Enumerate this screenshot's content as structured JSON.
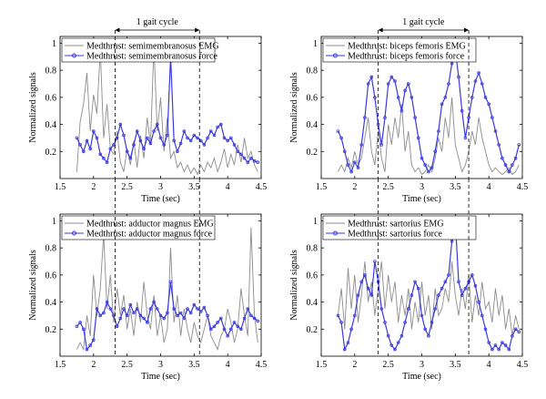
{
  "colors": {
    "emg": "#8c8c8c",
    "force": "#3a3adf",
    "axis": "#000000"
  },
  "chart_data": [
    {
      "type": "line",
      "panel": "top-left",
      "xlabel": "Time (sec)",
      "ylabel": "Normalized signals",
      "xlim": [
        1.5,
        4.5
      ],
      "ylim": [
        0,
        1.05
      ],
      "xticks": [
        "1.5",
        "2",
        "2.5",
        "3",
        "3.5",
        "4",
        "4.5"
      ],
      "yticks": [
        "0.2",
        "0.4",
        "0.6",
        "0.8",
        "1"
      ],
      "legend": "top-left",
      "annotation": {
        "text": "1 gait cycle",
        "x_start": 2.32,
        "x_end": 3.58
      },
      "series": [
        {
          "name": "Medthrust: semimembranosus EMG",
          "kind": "emg",
          "x": [
            1.75,
            1.8,
            1.85,
            1.9,
            1.95,
            2.0,
            2.05,
            2.1,
            2.15,
            2.2,
            2.25,
            2.3,
            2.35,
            2.4,
            2.45,
            2.5,
            2.55,
            2.6,
            2.65,
            2.7,
            2.75,
            2.8,
            2.85,
            2.9,
            2.95,
            3.0,
            3.05,
            3.1,
            3.15,
            3.2,
            3.25,
            3.3,
            3.35,
            3.4,
            3.45,
            3.5,
            3.55,
            3.6,
            3.65,
            3.7,
            3.75,
            3.8,
            3.85,
            3.9,
            3.95,
            4.0,
            4.05,
            4.1,
            4.15,
            4.2,
            4.25,
            4.3,
            4.35,
            4.4,
            4.45
          ],
          "y": [
            0.05,
            0.42,
            0.55,
            0.78,
            0.35,
            0.62,
            0.48,
            0.95,
            0.3,
            0.55,
            0.22,
            0.18,
            0.35,
            0.12,
            0.05,
            0.22,
            0.1,
            0.28,
            0.08,
            0.32,
            0.15,
            0.45,
            0.25,
            0.98,
            0.35,
            0.6,
            0.2,
            0.45,
            0.15,
            0.2,
            0.08,
            0.12,
            0.05,
            0.1,
            0.04,
            0.08,
            0.03,
            0.1,
            0.05,
            0.12,
            0.08,
            0.15,
            0.05,
            0.12,
            0.22,
            0.08,
            0.18,
            0.1,
            0.25,
            0.12,
            0.3,
            0.15,
            0.2,
            0.1,
            0.05
          ]
        },
        {
          "name": "Medthrust: semimembranosus force",
          "kind": "force",
          "x": [
            1.75,
            1.8,
            1.85,
            1.9,
            1.95,
            2.0,
            2.05,
            2.1,
            2.15,
            2.2,
            2.25,
            2.3,
            2.35,
            2.4,
            2.45,
            2.5,
            2.55,
            2.6,
            2.65,
            2.7,
            2.75,
            2.8,
            2.85,
            2.9,
            2.95,
            3.0,
            3.05,
            3.1,
            3.15,
            3.2,
            3.25,
            3.3,
            3.35,
            3.4,
            3.45,
            3.5,
            3.55,
            3.6,
            3.65,
            3.7,
            3.75,
            3.8,
            3.85,
            3.9,
            3.95,
            4.0,
            4.05,
            4.1,
            4.15,
            4.2,
            4.25,
            4.3,
            4.35,
            4.4,
            4.45
          ],
          "y": [
            0.3,
            0.25,
            0.2,
            0.28,
            0.22,
            0.35,
            0.3,
            0.18,
            0.15,
            0.12,
            0.22,
            0.25,
            0.3,
            0.4,
            0.32,
            0.2,
            0.15,
            0.25,
            0.35,
            0.28,
            0.22,
            0.3,
            0.26,
            0.35,
            0.4,
            0.3,
            0.25,
            0.32,
            0.9,
            0.28,
            0.2,
            0.26,
            0.35,
            0.3,
            0.28,
            0.32,
            0.3,
            0.28,
            0.25,
            0.3,
            0.35,
            0.32,
            0.38,
            0.4,
            0.3,
            0.28,
            0.3,
            0.25,
            0.2,
            0.18,
            0.15,
            0.12,
            0.15,
            0.13,
            0.12
          ]
        }
      ]
    },
    {
      "type": "line",
      "panel": "top-right",
      "xlabel": "Time (sec)",
      "ylabel": "Normalized signals",
      "xlim": [
        1.5,
        4.5
      ],
      "ylim": [
        0,
        1.05
      ],
      "xticks": [
        "1.5",
        "2",
        "2.5",
        "3",
        "3.5",
        "4",
        "4.5"
      ],
      "yticks": [
        "0.2",
        "0.4",
        "0.6",
        "0.8",
        "1"
      ],
      "legend": "top-left",
      "annotation": {
        "text": "1 gait cycle",
        "x_start": 2.35,
        "x_end": 3.7
      },
      "series": [
        {
          "name": "Medthrust: biceps femoris EMG",
          "kind": "emg",
          "x": [
            1.75,
            1.8,
            1.85,
            1.9,
            1.95,
            2.0,
            2.05,
            2.1,
            2.15,
            2.2,
            2.25,
            2.3,
            2.35,
            2.4,
            2.45,
            2.5,
            2.55,
            2.6,
            2.65,
            2.7,
            2.75,
            2.8,
            2.85,
            2.9,
            2.95,
            3.0,
            3.05,
            3.1,
            3.15,
            3.2,
            3.25,
            3.3,
            3.35,
            3.4,
            3.45,
            3.5,
            3.55,
            3.6,
            3.65,
            3.7,
            3.75,
            3.8,
            3.85,
            3.9,
            3.95,
            4.0,
            4.05,
            4.1,
            4.15,
            4.2,
            4.25,
            4.3,
            4.35,
            4.4,
            4.45
          ],
          "y": [
            0.05,
            0.1,
            0.05,
            0.15,
            0.08,
            0.2,
            0.1,
            0.15,
            0.3,
            0.45,
            0.2,
            0.1,
            0.35,
            0.15,
            0.05,
            0.4,
            0.25,
            0.45,
            0.3,
            0.55,
            0.2,
            0.35,
            0.1,
            0.05,
            0.08,
            0.03,
            0.05,
            0.1,
            0.05,
            0.15,
            0.3,
            0.2,
            0.45,
            0.3,
            0.6,
            0.25,
            0.15,
            0.05,
            0.1,
            0.2,
            0.35,
            0.25,
            0.45,
            0.3,
            0.2,
            0.1,
            0.05,
            0.08,
            0.05,
            0.03,
            0.05,
            0.08,
            0.03,
            0.05,
            0.1
          ]
        },
        {
          "name": "Medthrust: biceps femoris force",
          "kind": "force",
          "x": [
            1.75,
            1.8,
            1.85,
            1.9,
            1.95,
            2.0,
            2.05,
            2.1,
            2.15,
            2.2,
            2.25,
            2.3,
            2.35,
            2.4,
            2.45,
            2.5,
            2.55,
            2.6,
            2.65,
            2.7,
            2.75,
            2.8,
            2.85,
            2.9,
            2.95,
            3.0,
            3.05,
            3.1,
            3.15,
            3.2,
            3.25,
            3.3,
            3.35,
            3.4,
            3.45,
            3.5,
            3.55,
            3.6,
            3.65,
            3.7,
            3.75,
            3.8,
            3.85,
            3.9,
            3.95,
            4.0,
            4.05,
            4.1,
            4.15,
            4.2,
            4.25,
            4.3,
            4.35,
            4.4,
            4.45
          ],
          "y": [
            0.35,
            0.3,
            0.2,
            0.1,
            0.05,
            0.12,
            0.08,
            0.25,
            0.45,
            0.7,
            0.75,
            0.6,
            0.4,
            0.25,
            0.45,
            0.7,
            0.75,
            0.72,
            0.6,
            0.5,
            0.65,
            0.7,
            0.6,
            0.45,
            0.3,
            0.15,
            0.1,
            0.05,
            0.08,
            0.2,
            0.35,
            0.55,
            0.6,
            0.7,
            0.85,
            0.95,
            0.75,
            0.5,
            0.3,
            0.45,
            0.6,
            0.72,
            0.78,
            0.7,
            0.6,
            0.55,
            0.45,
            0.35,
            0.25,
            0.15,
            0.1,
            0.05,
            0.1,
            0.15,
            0.25
          ]
        }
      ]
    },
    {
      "type": "line",
      "panel": "bottom-left",
      "xlabel": "Time (sec)",
      "ylabel": "Normalized signals",
      "xlim": [
        1.5,
        4.5
      ],
      "ylim": [
        0,
        1.05
      ],
      "xticks": [
        "1.5",
        "2",
        "2.5",
        "3",
        "3.5",
        "4",
        "4.5"
      ],
      "yticks": [
        "0.2",
        "0.4",
        "0.6",
        "0.8",
        "1"
      ],
      "legend": "top-left",
      "series": [
        {
          "name": "Medthrust: adductor magnus EMG",
          "kind": "emg",
          "x": [
            1.75,
            1.8,
            1.85,
            1.9,
            1.95,
            2.0,
            2.05,
            2.1,
            2.15,
            2.2,
            2.25,
            2.3,
            2.35,
            2.4,
            2.45,
            2.5,
            2.55,
            2.6,
            2.65,
            2.7,
            2.75,
            2.8,
            2.85,
            2.9,
            2.95,
            3.0,
            3.05,
            3.1,
            3.15,
            3.2,
            3.25,
            3.3,
            3.35,
            3.4,
            3.45,
            3.5,
            3.55,
            3.6,
            3.65,
            3.7,
            3.75,
            3.8,
            3.85,
            3.9,
            3.95,
            4.0,
            4.05,
            4.1,
            4.15,
            4.2,
            4.25,
            4.3,
            4.35,
            4.4,
            4.45
          ],
          "y": [
            0.05,
            0.1,
            0.05,
            0.3,
            0.15,
            0.6,
            0.3,
            0.5,
            0.9,
            0.35,
            0.6,
            0.25,
            0.5,
            0.3,
            0.45,
            0.2,
            0.35,
            0.15,
            0.4,
            0.25,
            0.55,
            0.3,
            0.2,
            0.45,
            0.15,
            0.3,
            0.1,
            0.2,
            0.8,
            0.25,
            0.45,
            0.15,
            0.35,
            0.2,
            0.1,
            0.25,
            0.15,
            0.1,
            0.2,
            0.3,
            0.15,
            0.1,
            0.05,
            0.15,
            0.2,
            0.35,
            0.25,
            0.1,
            0.2,
            0.5,
            0.3,
            0.15,
            0.95,
            0.3,
            0.1
          ]
        },
        {
          "name": "Medthrust: adductor magnus force",
          "kind": "force",
          "x": [
            1.75,
            1.8,
            1.85,
            1.9,
            1.95,
            2.0,
            2.05,
            2.1,
            2.15,
            2.2,
            2.25,
            2.3,
            2.35,
            2.4,
            2.45,
            2.5,
            2.55,
            2.6,
            2.65,
            2.7,
            2.75,
            2.8,
            2.85,
            2.9,
            2.95,
            3.0,
            3.05,
            3.1,
            3.15,
            3.2,
            3.25,
            3.3,
            3.35,
            3.4,
            3.45,
            3.5,
            3.55,
            3.6,
            3.65,
            3.7,
            3.75,
            3.8,
            3.85,
            3.9,
            3.95,
            4.0,
            4.05,
            4.1,
            4.15,
            4.2,
            4.25,
            4.3,
            4.35,
            4.4,
            4.45
          ],
          "y": [
            0.22,
            0.25,
            0.2,
            0.05,
            0.08,
            0.12,
            0.35,
            0.3,
            0.32,
            0.4,
            0.35,
            0.3,
            0.22,
            0.28,
            0.35,
            0.3,
            0.38,
            0.32,
            0.35,
            0.3,
            0.28,
            0.25,
            0.35,
            0.4,
            0.35,
            0.3,
            0.28,
            0.32,
            0.55,
            0.35,
            0.3,
            0.32,
            0.28,
            0.35,
            0.32,
            0.38,
            0.35,
            0.33,
            0.36,
            0.3,
            0.2,
            0.22,
            0.25,
            0.28,
            0.2,
            0.15,
            0.2,
            0.25,
            0.22,
            0.2,
            0.28,
            0.35,
            0.3,
            0.28,
            0.26
          ]
        }
      ]
    },
    {
      "type": "line",
      "panel": "bottom-right",
      "xlabel": "Time (sec)",
      "ylabel": "Normalized signals",
      "xlim": [
        1.5,
        4.5
      ],
      "ylim": [
        0,
        1.05
      ],
      "xticks": [
        "1.5",
        "2",
        "2.5",
        "3",
        "3.5",
        "4",
        "4.5"
      ],
      "yticks": [
        "0.2",
        "0.4",
        "0.6",
        "0.8",
        "1"
      ],
      "legend": "top-left",
      "series": [
        {
          "name": "Medthrust: sartorius EMG",
          "kind": "emg",
          "x": [
            1.75,
            1.8,
            1.85,
            1.9,
            1.95,
            2.0,
            2.05,
            2.1,
            2.15,
            2.2,
            2.25,
            2.3,
            2.35,
            2.4,
            2.45,
            2.5,
            2.55,
            2.6,
            2.65,
            2.7,
            2.75,
            2.8,
            2.85,
            2.9,
            2.95,
            3.0,
            3.05,
            3.1,
            3.15,
            3.2,
            3.25,
            3.3,
            3.35,
            3.4,
            3.45,
            3.5,
            3.55,
            3.6,
            3.65,
            3.7,
            3.75,
            3.8,
            3.85,
            3.9,
            3.95,
            4.0,
            4.05,
            4.1,
            4.15,
            4.2,
            4.25,
            4.3,
            4.35,
            4.4,
            4.45
          ],
          "y": [
            0.3,
            0.5,
            0.2,
            0.65,
            0.35,
            0.6,
            0.25,
            0.45,
            0.7,
            0.4,
            0.55,
            0.3,
            0.5,
            0.7,
            0.35,
            0.6,
            0.4,
            0.55,
            0.25,
            0.45,
            0.3,
            0.5,
            0.2,
            0.4,
            0.25,
            0.55,
            0.3,
            0.45,
            0.2,
            0.5,
            0.3,
            0.35,
            0.5,
            0.4,
            0.7,
            0.45,
            0.3,
            0.5,
            0.35,
            0.6,
            0.25,
            0.45,
            0.3,
            0.55,
            0.35,
            0.4,
            0.25,
            0.5,
            0.3,
            0.45,
            0.2,
            0.35,
            0.15,
            0.3,
            0.2
          ]
        },
        {
          "name": "Medthrust: sartorius force",
          "kind": "force",
          "x": [
            1.75,
            1.8,
            1.85,
            1.9,
            1.95,
            2.0,
            2.05,
            2.1,
            2.15,
            2.2,
            2.25,
            2.3,
            2.35,
            2.4,
            2.45,
            2.5,
            2.55,
            2.6,
            2.65,
            2.7,
            2.75,
            2.8,
            2.85,
            2.9,
            2.95,
            3.0,
            3.05,
            3.1,
            3.15,
            3.2,
            3.25,
            3.3,
            3.35,
            3.4,
            3.45,
            3.5,
            3.55,
            3.6,
            3.65,
            3.7,
            3.75,
            3.8,
            3.85,
            3.9,
            3.95,
            4.0,
            4.05,
            4.1,
            4.15,
            4.2,
            4.25,
            4.3,
            4.35,
            4.4,
            4.45
          ],
          "y": [
            0.3,
            0.25,
            0.05,
            0.1,
            0.2,
            0.3,
            0.45,
            0.55,
            0.6,
            0.5,
            0.45,
            0.7,
            0.55,
            0.35,
            0.25,
            0.15,
            0.08,
            0.05,
            0.1,
            0.15,
            0.25,
            0.35,
            0.45,
            0.55,
            0.5,
            0.3,
            0.2,
            0.15,
            0.25,
            0.35,
            0.45,
            0.5,
            0.55,
            0.6,
            0.85,
            1.0,
            0.55,
            0.45,
            0.5,
            0.55,
            0.6,
            0.52,
            0.4,
            0.3,
            0.2,
            0.1,
            0.05,
            0.08,
            0.05,
            0.1,
            0.08,
            0.05,
            0.15,
            0.2,
            0.18
          ]
        }
      ]
    }
  ]
}
